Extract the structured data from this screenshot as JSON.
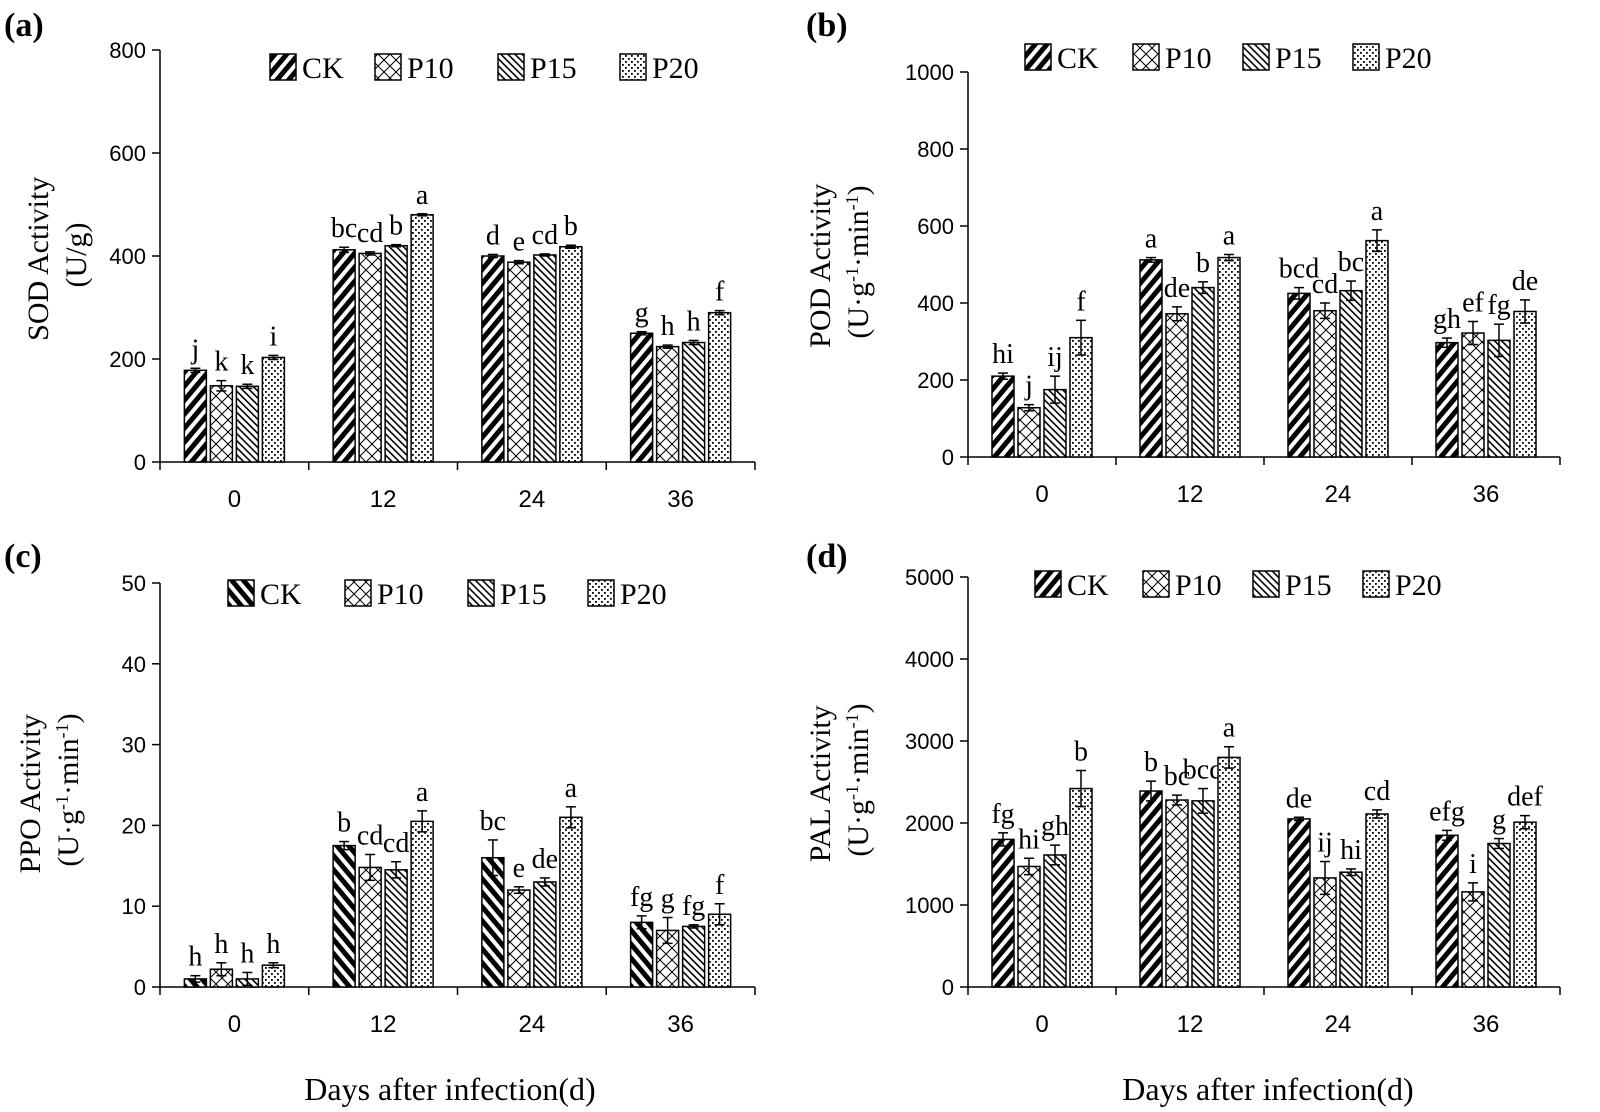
{
  "chart_data": [
    {
      "type": "bar",
      "panel": "(a)",
      "ylabel_line1": "SOD Activity",
      "ylabel_line2": "(U/g)",
      "xlabel": "",
      "ylim": [
        0,
        800
      ],
      "yticks": [
        "0",
        "200",
        "400",
        "600",
        "800"
      ],
      "categories": [
        "0",
        "12",
        "24",
        "36"
      ],
      "series": [
        {
          "name": "CK",
          "values": [
            178,
            412,
            400,
            250
          ],
          "errors": [
            4,
            5,
            3,
            3
          ],
          "letters": [
            "j",
            "bc",
            "d",
            "g"
          ]
        },
        {
          "name": "P10",
          "values": [
            148,
            405,
            388,
            224
          ],
          "errors": [
            10,
            3,
            3,
            3
          ],
          "letters": [
            "k",
            "cd",
            "e",
            "h"
          ]
        },
        {
          "name": "P15",
          "values": [
            147,
            420,
            402,
            232
          ],
          "errors": [
            4,
            2,
            2,
            4
          ],
          "letters": [
            "k",
            "b",
            "cd",
            "h"
          ]
        },
        {
          "name": "P20",
          "values": [
            203,
            480,
            418,
            290
          ],
          "errors": [
            4,
            2,
            3,
            4
          ],
          "letters": [
            "i",
            "a",
            "b",
            "f"
          ]
        }
      ]
    },
    {
      "type": "bar",
      "panel": "(b)",
      "ylabel_line1": "POD Activity",
      "ylabel_line2_main": "(U·g",
      "ylabel_line2_sup1": "-1",
      "ylabel_line2_mid": "·min",
      "ylabel_line2_sup2": "-1",
      "ylabel_line2_end": ")",
      "xlabel": "",
      "ylim": [
        0,
        1000
      ],
      "yticks": [
        "0",
        "200",
        "400",
        "600",
        "800",
        "1000"
      ],
      "categories": [
        "0",
        "12",
        "24",
        "36"
      ],
      "series": [
        {
          "name": "CK",
          "values": [
            210,
            512,
            425,
            297
          ],
          "errors": [
            8,
            6,
            15,
            12
          ],
          "letters": [
            "hi",
            "a",
            "bcd",
            "gh"
          ]
        },
        {
          "name": "P10",
          "values": [
            128,
            372,
            380,
            322
          ],
          "errors": [
            8,
            18,
            20,
            30
          ],
          "letters": [
            "j",
            "de",
            "cd",
            "ef"
          ]
        },
        {
          "name": "P15",
          "values": [
            175,
            440,
            432,
            303
          ],
          "errors": [
            35,
            15,
            25,
            42
          ],
          "letters": [
            "ij",
            "b",
            "bc",
            "fg"
          ]
        },
        {
          "name": "P20",
          "values": [
            310,
            518,
            562,
            378
          ],
          "errors": [
            45,
            8,
            28,
            30
          ],
          "letters": [
            "f",
            "a",
            "a",
            "de"
          ]
        }
      ]
    },
    {
      "type": "bar",
      "panel": "(c)",
      "ylabel_line1": "PPO Activity",
      "ylabel_line2_main": "(U·g",
      "ylabel_line2_sup1": "-1",
      "ylabel_line2_mid": "·min",
      "ylabel_line2_sup2": "-1",
      "ylabel_line2_end": ")",
      "xlabel": "Days after infection(d)",
      "ylim": [
        0,
        50
      ],
      "yticks": [
        "0",
        "10",
        "20",
        "30",
        "40",
        "50"
      ],
      "categories": [
        "0",
        "12",
        "24",
        "36"
      ],
      "series": [
        {
          "name": "CK",
          "values": [
            1.0,
            17.5,
            16.0,
            8.0
          ],
          "errors": [
            0.4,
            0.5,
            2.2,
            0.8
          ],
          "letters": [
            "h",
            "b",
            "bc",
            "fg"
          ]
        },
        {
          "name": "P10",
          "values": [
            2.2,
            14.8,
            12.0,
            7.0
          ],
          "errors": [
            0.8,
            1.6,
            0.4,
            1.6
          ],
          "letters": [
            "h",
            "cd",
            "e",
            "g"
          ]
        },
        {
          "name": "P15",
          "values": [
            1.0,
            14.5,
            13.0,
            7.5
          ],
          "errors": [
            0.8,
            1.0,
            0.5,
            0.2
          ],
          "letters": [
            "h",
            "cd",
            "de",
            "fg"
          ]
        },
        {
          "name": "P20",
          "values": [
            2.7,
            20.5,
            21.0,
            9.0
          ],
          "errors": [
            0.3,
            1.3,
            1.3,
            1.3
          ],
          "letters": [
            "h",
            "a",
            "a",
            "f"
          ]
        }
      ]
    },
    {
      "type": "bar",
      "panel": "(d)",
      "ylabel_line1": "PAL Activity",
      "ylabel_line2_main": "(U·g",
      "ylabel_line2_sup1": "-1",
      "ylabel_line2_mid": "·min",
      "ylabel_line2_sup2": "-1",
      "ylabel_line2_end": ")",
      "xlabel": "Days after infection(d)",
      "ylim": [
        0,
        5000
      ],
      "yticks": [
        "0",
        "1000",
        "2000",
        "3000",
        "4000",
        "5000"
      ],
      "categories": [
        "0",
        "12",
        "24",
        "36"
      ],
      "series": [
        {
          "name": "CK",
          "values": [
            1800,
            2390,
            2050,
            1850
          ],
          "errors": [
            80,
            120,
            20,
            60
          ],
          "letters": [
            "fg",
            "b",
            "de",
            "efg"
          ]
        },
        {
          "name": "P10",
          "values": [
            1470,
            2280,
            1330,
            1160
          ],
          "errors": [
            100,
            60,
            200,
            110
          ],
          "letters": [
            "hi",
            "bc",
            "ij",
            "i"
          ]
        },
        {
          "name": "P15",
          "values": [
            1610,
            2270,
            1400,
            1750
          ],
          "errors": [
            120,
            150,
            40,
            60
          ],
          "letters": [
            "gh",
            "bcd",
            "hi",
            "g"
          ]
        },
        {
          "name": "P20",
          "values": [
            2420,
            2800,
            2110,
            2010
          ],
          "errors": [
            220,
            130,
            50,
            80
          ],
          "letters": [
            "b",
            "a",
            "cd",
            "def"
          ]
        }
      ]
    }
  ]
}
